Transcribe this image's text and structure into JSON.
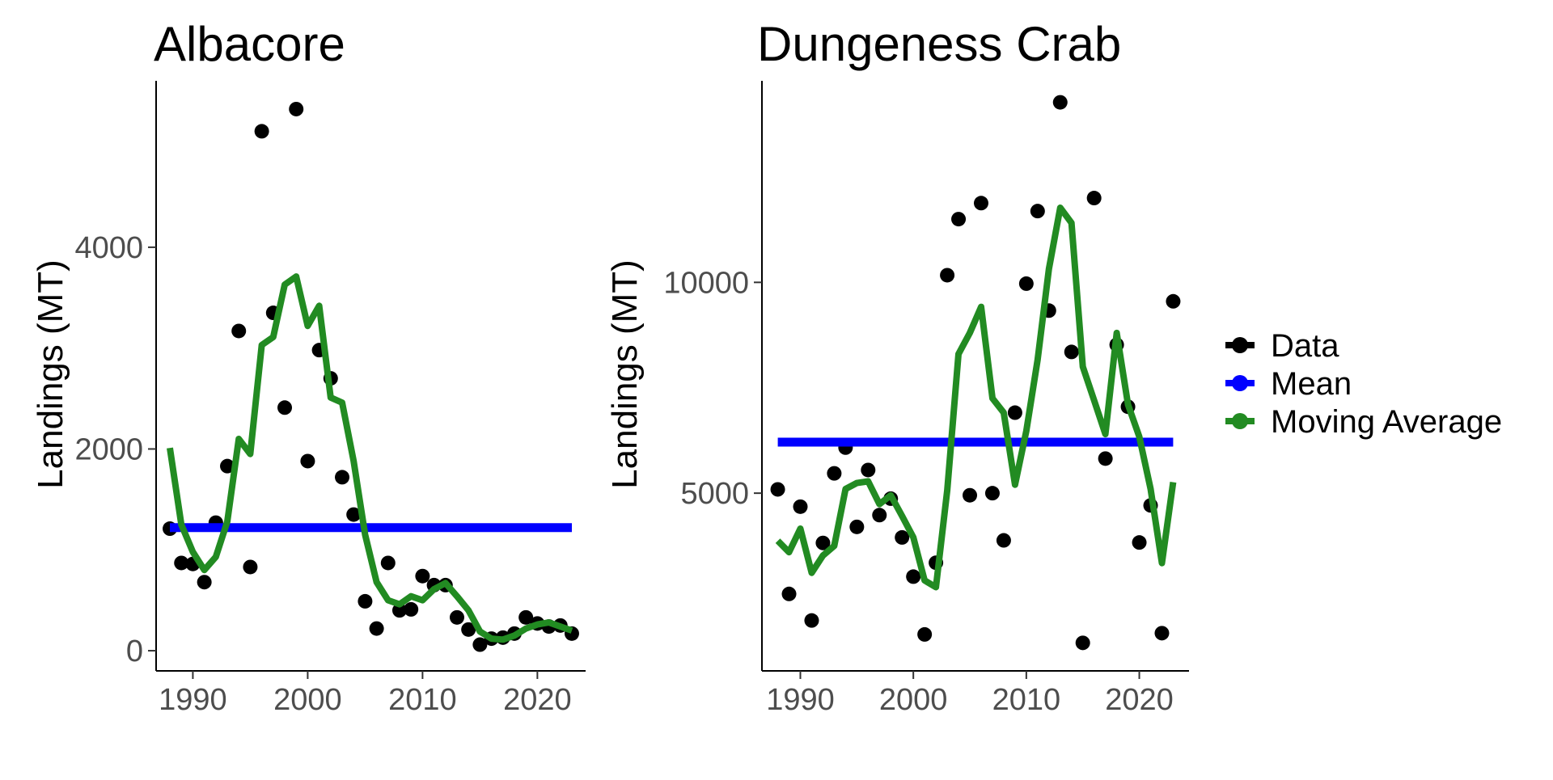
{
  "legend": {
    "entries": [
      {
        "label": "Data",
        "color": "#000000",
        "kind": "point"
      },
      {
        "label": "Mean",
        "color": "#0000ff",
        "kind": "line"
      },
      {
        "label": "Moving Average",
        "color": "#228b22",
        "kind": "line"
      }
    ],
    "placement": "right"
  },
  "chart_data": [
    {
      "type": "scatter",
      "title": "Albacore",
      "xlabel": "",
      "ylabel": "Landings (MT)",
      "xlim": [
        1986.8,
        2024.2
      ],
      "ylim": [
        -200,
        5650
      ],
      "xticks": [
        1990,
        2000,
        2010,
        2020
      ],
      "yticks": [
        0,
        2000,
        4000
      ],
      "grid": false,
      "series": [
        {
          "name": "Data",
          "kind": "points",
          "color": "#000000",
          "x": [
            1988,
            1989,
            1990,
            1991,
            1992,
            1993,
            1994,
            1995,
            1996,
            1997,
            1998,
            1999,
            2000,
            2001,
            2002,
            2003,
            2004,
            2005,
            2006,
            2007,
            2008,
            2009,
            2010,
            2011,
            2012,
            2013,
            2014,
            2015,
            2016,
            2017,
            2018,
            2019,
            2020,
            2021,
            2022,
            2023
          ],
          "y": [
            1210,
            870,
            860,
            680,
            1270,
            1830,
            3170,
            830,
            5150,
            3350,
            2410,
            5370,
            1880,
            2980,
            2700,
            1720,
            1350,
            490,
            220,
            870,
            400,
            410,
            740,
            650,
            650,
            330,
            210,
            60,
            120,
            130,
            170,
            330,
            270,
            240,
            250,
            170
          ]
        },
        {
          "name": "Mean",
          "kind": "line",
          "color": "#0000ff",
          "x": [
            1988,
            2023
          ],
          "y": [
            1220,
            1220
          ]
        },
        {
          "name": "Moving Average",
          "kind": "line",
          "color": "#228b22",
          "x": [
            1988,
            1989,
            1990,
            1991,
            1992,
            1993,
            1994,
            1995,
            1996,
            1997,
            1998,
            1999,
            2000,
            2001,
            2002,
            2003,
            2004,
            2005,
            2006,
            2007,
            2008,
            2009,
            2010,
            2011,
            2012,
            2013,
            2014,
            2015,
            2016,
            2017,
            2018,
            2019,
            2020,
            2021,
            2022,
            2023
          ],
          "y": [
            2010,
            1250,
            980,
            800,
            930,
            1280,
            2100,
            1950,
            3030,
            3110,
            3630,
            3710,
            3220,
            3420,
            2510,
            2460,
            1880,
            1150,
            680,
            500,
            460,
            540,
            500,
            610,
            670,
            540,
            400,
            190,
            120,
            110,
            150,
            220,
            260,
            280,
            240,
            200
          ]
        }
      ]
    },
    {
      "type": "scatter",
      "title": "Dungeness Crab",
      "xlabel": "",
      "ylabel": "Landings (MT)",
      "xlim": [
        1986.6,
        2024.4
      ],
      "ylim": [
        785,
        14780
      ],
      "xticks": [
        1990,
        2000,
        2010,
        2020
      ],
      "yticks": [
        5000,
        10000
      ],
      "grid": false,
      "series": [
        {
          "name": "Data",
          "kind": "points",
          "color": "#000000",
          "x": [
            1988,
            1989,
            1990,
            1991,
            1992,
            1993,
            1994,
            1995,
            1996,
            1997,
            1998,
            1999,
            2000,
            2001,
            2002,
            2003,
            2004,
            2005,
            2006,
            2007,
            2008,
            2009,
            2010,
            2011,
            2012,
            2013,
            2014,
            2015,
            2016,
            2017,
            2018,
            2019,
            2020,
            2021,
            2022,
            2023
          ],
          "y": [
            5090,
            2610,
            4680,
            1980,
            3820,
            5470,
            6080,
            4200,
            5550,
            4480,
            4870,
            3950,
            3020,
            1650,
            3350,
            10170,
            11500,
            4950,
            11880,
            5000,
            3880,
            6910,
            9970,
            11690,
            9330,
            14270,
            8350,
            1450,
            12000,
            5820,
            8520,
            7050,
            3830,
            4710,
            1680,
            9550
          ]
        },
        {
          "name": "Mean",
          "kind": "line",
          "color": "#0000ff",
          "x": [
            1988,
            2023
          ],
          "y": [
            6210,
            6210
          ]
        },
        {
          "name": "Moving Average",
          "kind": "line",
          "color": "#228b22",
          "x": [
            1988,
            1989,
            1990,
            1991,
            1992,
            1993,
            1994,
            1995,
            1996,
            1997,
            1998,
            1999,
            2000,
            2001,
            2002,
            2003,
            2004,
            2005,
            2006,
            2007,
            2008,
            2009,
            2010,
            2011,
            2012,
            2013,
            2014,
            2015,
            2016,
            2017,
            2018,
            2019,
            2020,
            2021,
            2022,
            2023
          ],
          "y": [
            3870,
            3600,
            4160,
            3110,
            3520,
            3750,
            5100,
            5240,
            5280,
            4740,
            4950,
            4460,
            3950,
            2930,
            2770,
            5070,
            8300,
            8800,
            9420,
            7250,
            6910,
            5200,
            6480,
            8160,
            10320,
            11770,
            11410,
            8000,
            7200,
            6400,
            8800,
            7100,
            6340,
            5100,
            3340,
            5260
          ]
        }
      ]
    }
  ]
}
